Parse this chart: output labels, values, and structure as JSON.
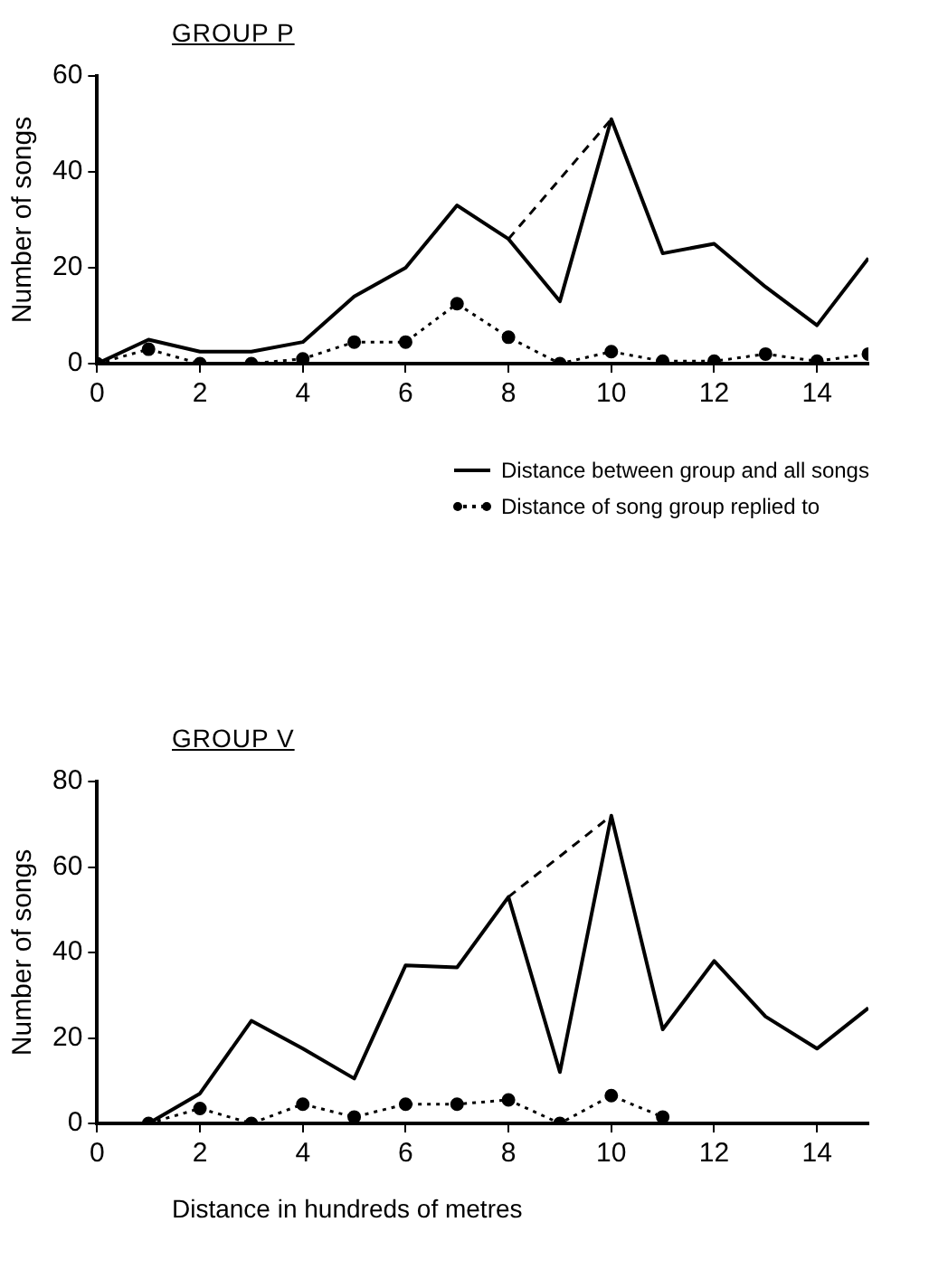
{
  "chart_data": [
    {
      "type": "line",
      "title": "GROUP P",
      "ylabel": "Number of songs",
      "x": [
        0,
        1,
        2,
        3,
        4,
        5,
        6,
        7,
        8,
        9,
        10,
        11,
        12,
        13,
        14,
        15
      ],
      "xlim": [
        0,
        15
      ],
      "xticks": [
        0,
        2,
        4,
        6,
        8,
        10,
        12,
        14
      ],
      "ylim": [
        0,
        60
      ],
      "yticks": [
        0,
        20,
        40,
        60
      ],
      "grid": false,
      "legend": "bottom",
      "series": [
        {
          "name": "Distance between group and all songs",
          "color": "#000000",
          "line_style": "solid",
          "marker": "none",
          "values": [
            0,
            5,
            2.5,
            2.5,
            4.5,
            14,
            20,
            33,
            26,
            13,
            51,
            23,
            25,
            16,
            8,
            22
          ]
        },
        {
          "name": "Distance of song group replied to",
          "color": "#000000",
          "line_style": "dotted",
          "marker": "circle",
          "values": [
            0,
            3,
            0,
            0,
            1,
            4.5,
            4.5,
            12.5,
            5.5,
            0,
            2.5,
            0.5,
            0.5,
            2,
            0.5,
            2
          ]
        },
        {
          "color": "#000000",
          "line_style": "dashed",
          "marker": "none",
          "x": [
            8,
            10
          ],
          "values": [
            26,
            51
          ]
        }
      ]
    },
    {
      "type": "line",
      "title": "GROUP V",
      "xlabel": "Distance in hundreds of metres",
      "ylabel": "Number of songs",
      "x": [
        0,
        1,
        2,
        3,
        4,
        5,
        6,
        7,
        8,
        9,
        10,
        11,
        12,
        13,
        14,
        15
      ],
      "xlim": [
        0,
        15
      ],
      "xticks": [
        0,
        2,
        4,
        6,
        8,
        10,
        12,
        14
      ],
      "ylim": [
        0,
        80
      ],
      "yticks": [
        0,
        20,
        40,
        60,
        80
      ],
      "grid": false,
      "series": [
        {
          "color": "#000000",
          "line_style": "solid",
          "marker": "none",
          "values": [
            0,
            0,
            7,
            24,
            17.5,
            10.5,
            37,
            36.5,
            53,
            12,
            72,
            22,
            38,
            25,
            17.5,
            27
          ]
        },
        {
          "color": "#000000",
          "line_style": "dotted",
          "marker": "circle",
          "x": [
            1,
            2,
            3,
            4,
            5,
            6,
            7,
            8,
            9,
            10,
            11
          ],
          "values": [
            0,
            3.5,
            0,
            4.5,
            1.5,
            4.5,
            4.5,
            5.5,
            0,
            6.5,
            1.5
          ]
        },
        {
          "color": "#000000",
          "line_style": "dashed",
          "marker": "none",
          "x": [
            8,
            10
          ],
          "values": [
            53,
            72
          ]
        }
      ]
    }
  ]
}
